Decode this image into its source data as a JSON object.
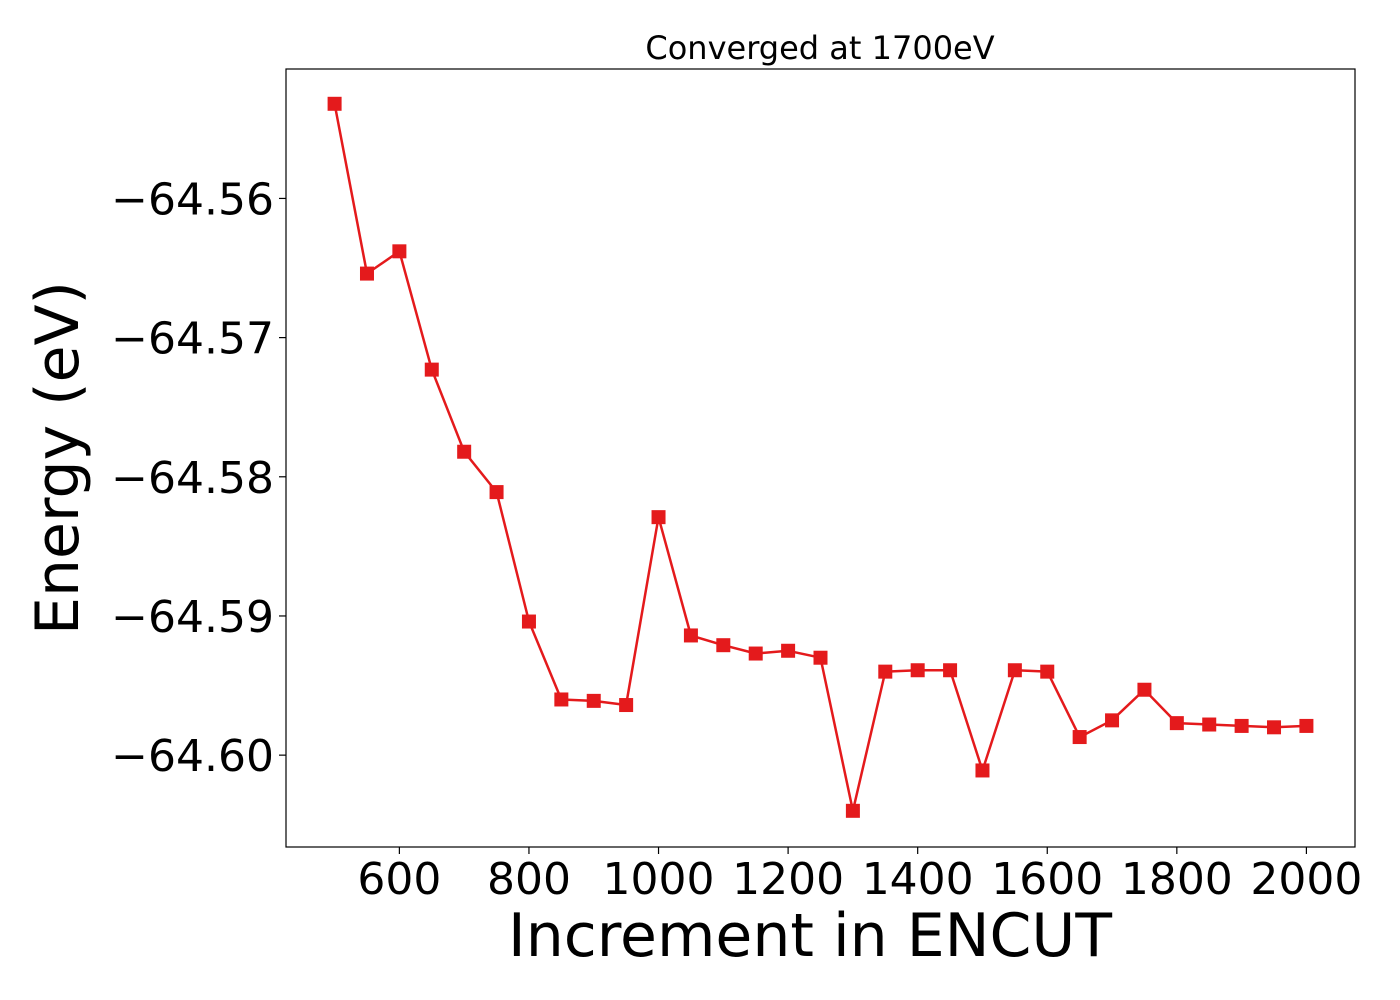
{
  "chart_data": {
    "type": "line",
    "title": "Converged at 1700eV",
    "xlabel": "Increment in ENCUT",
    "ylabel": "Energy (eV)",
    "xlim": [
      425,
      2075
    ],
    "ylim": [
      -64.6066,
      -64.5507
    ],
    "xticks": [
      600,
      800,
      1000,
      1200,
      1400,
      1600,
      1800,
      2000
    ],
    "xtick_labels": [
      "600",
      "800",
      "1000",
      "1200",
      "1400",
      "1600",
      "1800",
      "2000"
    ],
    "yticks": [
      -64.56,
      -64.57,
      -64.58,
      -64.59,
      -64.6
    ],
    "ytick_labels": [
      "−64.56",
      "−64.57",
      "−64.58",
      "−64.59",
      "−64.60"
    ],
    "grid": false,
    "series": [
      {
        "color": "#e41a1c",
        "marker": "square",
        "x": [
          500,
          550,
          600,
          650,
          700,
          750,
          800,
          850,
          900,
          950,
          1000,
          1050,
          1100,
          1150,
          1200,
          1250,
          1300,
          1350,
          1400,
          1450,
          1500,
          1550,
          1600,
          1650,
          1700,
          1750,
          1800,
          1850,
          1900,
          1950,
          2000
        ],
        "y": [
          -64.5532,
          -64.5654,
          -64.5638,
          -64.5723,
          -64.5782,
          -64.5811,
          -64.5904,
          -64.596,
          -64.5961,
          -64.5964,
          -64.5829,
          -64.5914,
          -64.5921,
          -64.5927,
          -64.5925,
          -64.593,
          -64.604,
          -64.594,
          -64.5939,
          -64.5939,
          -64.6011,
          -64.5939,
          -64.594,
          -64.5987,
          -64.5975,
          -64.5953,
          -64.5977,
          -64.5978,
          -64.5979,
          -64.598,
          -64.5979
        ]
      }
    ]
  }
}
